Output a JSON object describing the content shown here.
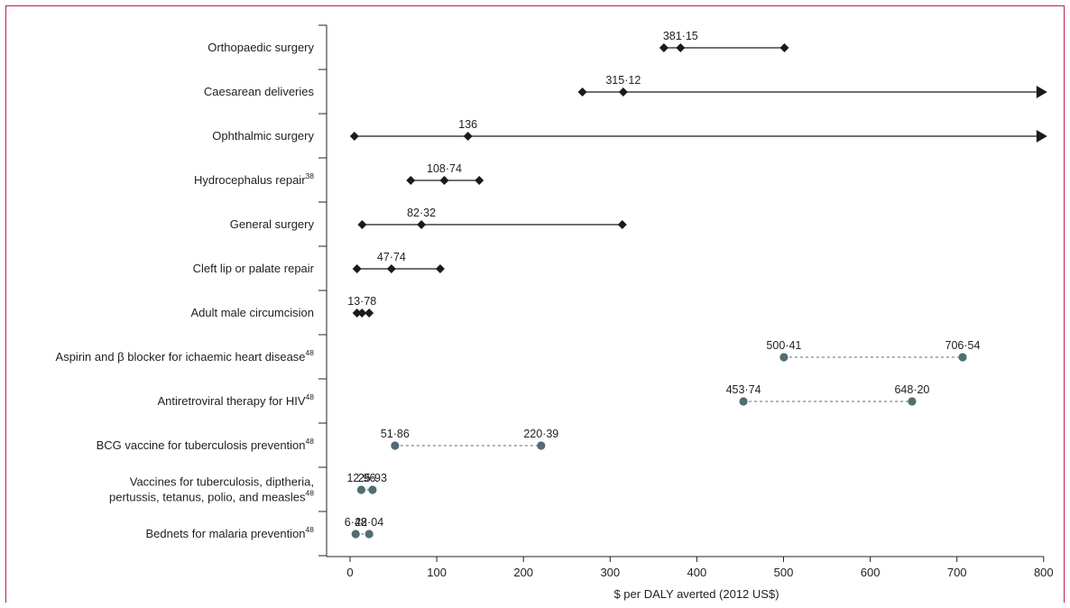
{
  "chart_data": {
    "type": "range",
    "title": "",
    "xlabel": "$ per DALY averted (2012 US$)",
    "ylabel": "",
    "xlim": [
      -30,
      800
    ],
    "xticks": [
      0,
      100,
      200,
      300,
      400,
      500,
      600,
      700,
      800
    ],
    "grid": false,
    "colors": {
      "surgical": "#1a1a1a",
      "comparator": "#4f6d73"
    },
    "categories": [
      {
        "lines": [
          "Orthopaedic surgery"
        ],
        "sup": "",
        "group": "surgical",
        "min": 362,
        "point": 381.15,
        "max": 501,
        "arrow": false,
        "label": "381·15"
      },
      {
        "lines": [
          "Caesarean deliveries"
        ],
        "sup": "",
        "group": "surgical",
        "min": 268,
        "point": 315.12,
        "max": 800,
        "arrow": true,
        "label": "315·12"
      },
      {
        "lines": [
          "Ophthalmic surgery"
        ],
        "sup": "",
        "group": "surgical",
        "min": 5,
        "point": 136,
        "max": 800,
        "arrow": true,
        "label": "136"
      },
      {
        "lines": [
          "Hydrocephalus repair"
        ],
        "sup": "38",
        "group": "surgical",
        "min": 70,
        "point": 108.74,
        "max": 149,
        "arrow": false,
        "label": "108·74"
      },
      {
        "lines": [
          "General surgery"
        ],
        "sup": "",
        "group": "surgical",
        "min": 14,
        "point": 82.32,
        "max": 314,
        "arrow": false,
        "label": "82·32"
      },
      {
        "lines": [
          "Cleft lip or palate repair"
        ],
        "sup": "",
        "group": "surgical",
        "min": 8,
        "point": 47.74,
        "max": 104,
        "arrow": false,
        "label": "47·74"
      },
      {
        "lines": [
          "Adult male circumcision"
        ],
        "sup": "",
        "group": "surgical",
        "min": 8,
        "point": 13.78,
        "max": 22,
        "arrow": false,
        "label": "13·78"
      },
      {
        "lines": [
          "Aspirin and β blocker for ichaemic heart disease"
        ],
        "sup": "48",
        "group": "comparator",
        "min": 500.41,
        "max": 706.54,
        "labels": [
          "500·41",
          "706·54"
        ]
      },
      {
        "lines": [
          "Antiretroviral therapy for HIV"
        ],
        "sup": "48",
        "group": "comparator",
        "min": 453.74,
        "max": 648.2,
        "labels": [
          "453·74",
          "648·20"
        ]
      },
      {
        "lines": [
          "BCG vaccine for tuberculosis prevention"
        ],
        "sup": "48",
        "group": "comparator",
        "min": 51.86,
        "max": 220.39,
        "labels": [
          "51·86",
          "220·39"
        ]
      },
      {
        "lines": [
          "Vaccines for tuberculosis, diptheria,",
          "pertussis, tetanus, polio, and measles"
        ],
        "sup": "48",
        "group": "comparator",
        "min": 12.96,
        "max": 25.93,
        "labels": [
          "12·96",
          "25·93"
        ]
      },
      {
        "lines": [
          "Bednets for malaria prevention"
        ],
        "sup": "48",
        "group": "comparator",
        "min": 6.48,
        "max": 22.04,
        "labels": [
          "6·48",
          "22·04"
        ]
      }
    ]
  }
}
